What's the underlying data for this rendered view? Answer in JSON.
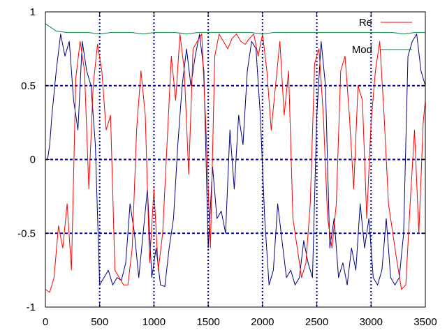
{
  "chart_data": {
    "type": "line",
    "title": "",
    "xlabel": "",
    "ylabel": "",
    "xlim": [
      0,
      3500
    ],
    "ylim": [
      -1,
      1
    ],
    "grid": true,
    "legend_position": "top-right",
    "x_ticks": [
      0,
      500,
      1000,
      1500,
      2000,
      2500,
      3000,
      3500
    ],
    "x_tick_labels": [
      "0",
      "500",
      "1000",
      "1500",
      "2000",
      "2500",
      "3000",
      "3500"
    ],
    "y_ticks": [
      1,
      0.5,
      0,
      -0.5,
      -1
    ],
    "y_tick_labels": [
      "1",
      "0.5",
      "0",
      "-0.5",
      "-1"
    ],
    "series": [
      {
        "name": "Re",
        "color": "#ff0000",
        "x": [
          0,
          40,
          80,
          120,
          160,
          200,
          240,
          280,
          320,
          360,
          400,
          440,
          480,
          520,
          560,
          600,
          640,
          680,
          720,
          760,
          800,
          840,
          880,
          920,
          960,
          1000,
          1040,
          1080,
          1120,
          1160,
          1200,
          1240,
          1280,
          1320,
          1360,
          1400,
          1440,
          1480,
          1520,
          1560,
          1600,
          1640,
          1680,
          1720,
          1760,
          1800,
          1840,
          1880,
          1920,
          1960,
          2000,
          2040,
          2080,
          2120,
          2160,
          2200,
          2240,
          2280,
          2320,
          2360,
          2400,
          2440,
          2480,
          2520,
          2560,
          2600,
          2640,
          2680,
          2720,
          2760,
          2800,
          2840,
          2880,
          2920,
          2960,
          3000,
          3040,
          3080,
          3120,
          3160,
          3200,
          3240,
          3280,
          3320,
          3360,
          3400,
          3440,
          3480,
          3500
        ],
        "values": [
          -0.88,
          -0.9,
          -0.8,
          -0.45,
          -0.6,
          -0.3,
          -0.75,
          0.55,
          0.8,
          0.6,
          -0.2,
          0.5,
          0.78,
          0.6,
          0.2,
          0.3,
          -0.75,
          -0.8,
          -0.85,
          -0.85,
          -0.6,
          0.2,
          0.6,
          0.3,
          -0.7,
          -0.2,
          -0.75,
          -0.5,
          0.1,
          0.7,
          0.4,
          0.85,
          0.6,
          -0.1,
          0.75,
          0.8,
          0.85,
          0.2,
          -0.6,
          0.7,
          0.85,
          0.8,
          0.75,
          0.82,
          0.85,
          0.8,
          0.78,
          0.82,
          0.85,
          0.7,
          0.85,
          0.6,
          0.2,
          0.5,
          0.8,
          0.3,
          0.6,
          -0.4,
          -0.6,
          -0.8,
          -0.7,
          -0.3,
          0.65,
          0.75,
          0.3,
          -0.4,
          -0.6,
          -0.3,
          0.6,
          0.7,
          0.3,
          -0.2,
          0.5,
          0.4,
          -0.4,
          0.25,
          0.6,
          0.8,
          0.3,
          -0.3,
          -0.5,
          -0.7,
          -0.88,
          -0.85,
          -0.3,
          0.2,
          -0.5,
          0.25,
          0.4
        ]
      },
      {
        "name": "Mod",
        "color": "#008040",
        "x": [
          0,
          100,
          200,
          300,
          400,
          500,
          600,
          700,
          800,
          900,
          1000,
          1100,
          1200,
          1300,
          1400,
          1500,
          1600,
          1700,
          1800,
          1900,
          2000,
          2100,
          2200,
          2300,
          2400,
          2500,
          2600,
          2700,
          2800,
          2900,
          3000,
          3100,
          3200,
          3300,
          3400,
          3500
        ],
        "values": [
          0.92,
          0.87,
          0.86,
          0.86,
          0.86,
          0.85,
          0.86,
          0.86,
          0.86,
          0.85,
          0.86,
          0.86,
          0.86,
          0.85,
          0.86,
          0.86,
          0.86,
          0.86,
          0.86,
          0.86,
          0.85,
          0.86,
          0.86,
          0.86,
          0.86,
          0.86,
          0.86,
          0.86,
          0.86,
          0.86,
          0.86,
          0.86,
          0.86,
          0.85,
          0.86,
          0.86
        ]
      },
      {
        "name": "",
        "color": "#000080",
        "x": [
          0,
          20,
          40,
          60,
          80,
          100,
          140,
          180,
          220,
          260,
          300,
          340,
          380,
          420,
          460,
          500,
          540,
          580,
          620,
          660,
          700,
          740,
          780,
          820,
          860,
          900,
          940,
          980,
          1020,
          1060,
          1100,
          1140,
          1180,
          1220,
          1260,
          1300,
          1340,
          1380,
          1420,
          1460,
          1500,
          1540,
          1580,
          1620,
          1660,
          1700,
          1740,
          1780,
          1820,
          1860,
          1900,
          1940,
          1980,
          2020,
          2060,
          2100,
          2140,
          2180,
          2220,
          2260,
          2300,
          2340,
          2380,
          2420,
          2460,
          2500,
          2540,
          2580,
          2620,
          2660,
          2700,
          2740,
          2780,
          2820,
          2860,
          2900,
          2940,
          2980,
          3020,
          3060,
          3100,
          3140,
          3180,
          3220,
          3260,
          3300,
          3340,
          3380,
          3420,
          3460,
          3500
        ],
        "values": [
          0.0,
          0.0,
          0.1,
          0.3,
          0.45,
          0.6,
          0.85,
          0.7,
          0.8,
          0.4,
          0.2,
          0.8,
          0.6,
          0.5,
          0.1,
          -0.85,
          -0.8,
          -0.75,
          -0.85,
          -0.8,
          -0.82,
          -0.7,
          -0.3,
          -0.5,
          -0.8,
          -0.5,
          -0.2,
          -0.8,
          -0.6,
          -0.85,
          -0.86,
          -0.6,
          -0.4,
          0.1,
          0.5,
          0.75,
          0.5,
          0.7,
          0.85,
          0.6,
          -0.6,
          -0.05,
          -0.4,
          -0.35,
          -0.5,
          0.2,
          -0.2,
          0.3,
          0.1,
          0.6,
          0.8,
          0.75,
          0.3,
          -0.4,
          -0.85,
          -0.75,
          -0.3,
          -0.55,
          -0.8,
          -0.75,
          -0.85,
          -0.8,
          -0.55,
          -0.7,
          -0.8,
          0.3,
          0.8,
          0.5,
          -0.6,
          -0.4,
          -0.8,
          -0.7,
          -0.85,
          -0.6,
          -0.75,
          -0.3,
          -0.6,
          -0.4,
          -0.8,
          -0.85,
          -0.75,
          -0.4,
          -0.8,
          -0.85,
          -0.8,
          -0.5,
          0.7,
          0.8,
          0.85,
          0.6,
          0.5
        ]
      }
    ]
  }
}
